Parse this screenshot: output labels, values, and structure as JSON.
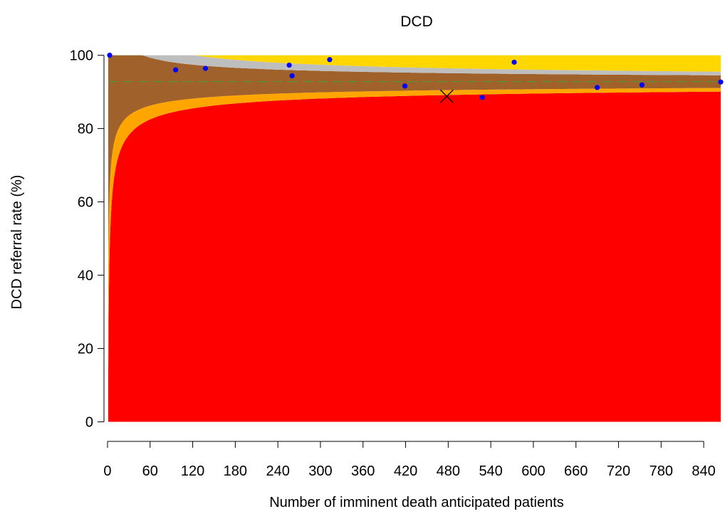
{
  "chart_data": {
    "type": "funnel",
    "title": "DCD",
    "xlabel": "Number of imminent death anticipated patients",
    "ylabel": "DCD referral rate (%)",
    "xlim": [
      -5,
      870
    ],
    "ylim": [
      -3,
      104
    ],
    "x_ticks": [
      0,
      60,
      120,
      180,
      240,
      300,
      360,
      420,
      480,
      540,
      600,
      660,
      720,
      780,
      840
    ],
    "y_ticks": [
      0,
      20,
      40,
      60,
      80,
      100
    ],
    "target_rate": 92.8,
    "n_max": 864,
    "colors": {
      "below_outer": "#ff0000",
      "outer_lower_band": "#ffa500",
      "inner_band": "#a0612a",
      "outer_upper_band": "#bebebe",
      "above_outer": "#ffd700",
      "target_line": "#4a9a3a",
      "points": "#0000ff",
      "marker": "#000000"
    },
    "points": [
      {
        "x": 3,
        "y": 100
      },
      {
        "x": 96,
        "y": 96
      },
      {
        "x": 138,
        "y": 96.4
      },
      {
        "x": 256,
        "y": 97.3
      },
      {
        "x": 260,
        "y": 94.4
      },
      {
        "x": 313,
        "y": 98.8
      },
      {
        "x": 419,
        "y": 91.6
      },
      {
        "x": 528,
        "y": 88.5
      },
      {
        "x": 573,
        "y": 98.1
      },
      {
        "x": 690,
        "y": 91.2
      },
      {
        "x": 753,
        "y": 91.9
      },
      {
        "x": 864,
        "y": 92.7
      }
    ],
    "highlight": {
      "x": 478,
      "y": 88.8,
      "symbol": "x"
    }
  }
}
